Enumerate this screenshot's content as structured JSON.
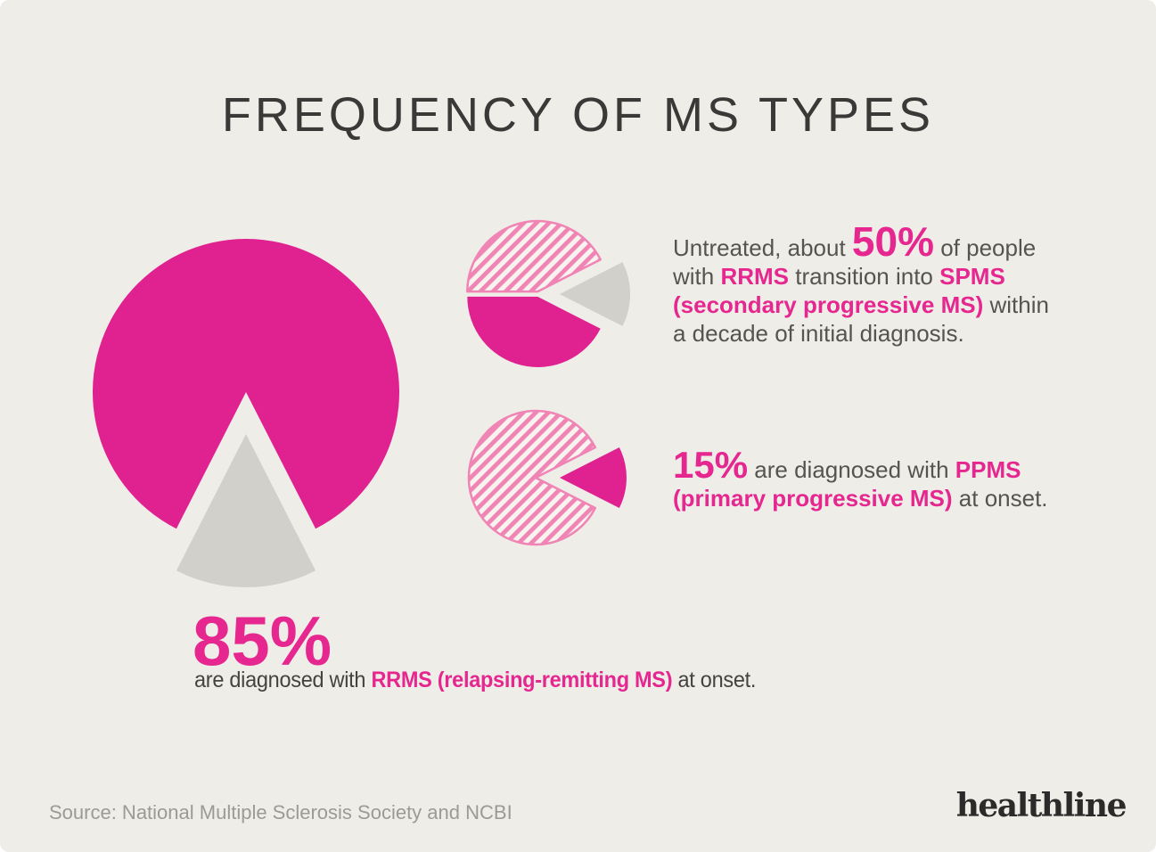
{
  "title": "FREQUENCY OF MS TYPES",
  "colors": {
    "background": "#efede8",
    "pink": "#e02190",
    "text_pink": "#e5278f",
    "hatch_pink": "#f084b4",
    "hatch_bg": "#f7f4ef",
    "gray": "#d2d0cb",
    "title_text": "#3a3938",
    "body_text": "#56544f",
    "caption_text": "#454340",
    "source_text": "#9c9a94",
    "logo_text": "#2c2b29"
  },
  "chart_data": [
    {
      "type": "pie",
      "name": "rrms-at-onset-pie",
      "slices": [
        {
          "label": "RRMS (relapsing-remitting MS) at onset",
          "value": 85,
          "style": "solid-pink"
        },
        {
          "label": "Other MS types",
          "value": 15,
          "style": "gray",
          "exploded": true
        }
      ]
    },
    {
      "type": "pie",
      "name": "spms-transition-pie",
      "slices": [
        {
          "label": "RRMS transitioning into SPMS (about 50% of RRMS, untreated)",
          "value": 42.5,
          "style": "hatched-pink"
        },
        {
          "label": "RRMS not transitioning",
          "value": 42.5,
          "style": "solid-pink"
        },
        {
          "label": "Non-RRMS",
          "value": 15,
          "style": "gray",
          "exploded": true
        }
      ]
    },
    {
      "type": "pie",
      "name": "ppms-at-onset-pie",
      "slices": [
        {
          "label": "Other MS types",
          "value": 85,
          "style": "hatched-pink"
        },
        {
          "label": "PPMS (primary progressive MS) at onset",
          "value": 15,
          "style": "solid-pink",
          "exploded": true
        }
      ]
    }
  ],
  "callouts": {
    "spms": {
      "lines": [
        [
          {
            "t": "Untreated, about ",
            "s": "text"
          },
          {
            "t": "50%",
            "s": "stat"
          },
          {
            "t": " of people",
            "s": "text"
          }
        ],
        [
          {
            "t": "with ",
            "s": "text"
          },
          {
            "t": "RRMS",
            "s": "em"
          },
          {
            "t": " transition into ",
            "s": "text"
          },
          {
            "t": "SPMS",
            "s": "em"
          }
        ],
        [
          {
            "t": "(secondary progressive MS)",
            "s": "em"
          },
          {
            "t": " within",
            "s": "text"
          }
        ],
        [
          {
            "t": "a decade of initial diagnosis.",
            "s": "text"
          }
        ]
      ]
    },
    "ppms": {
      "lines": [
        [
          {
            "t": "15%",
            "s": "stat"
          },
          {
            "t": " are diagnosed with ",
            "s": "text"
          },
          {
            "t": "PPMS",
            "s": "em"
          }
        ],
        [
          {
            "t": "(primary progressive MS)",
            "s": "em"
          },
          {
            "t": " at onset.",
            "s": "text"
          }
        ]
      ]
    },
    "rrms": {
      "stat": "85%",
      "lines": [
        [
          {
            "t": "are diagnosed with ",
            "s": "text"
          },
          {
            "t": "RRMS (relapsing-remitting MS)",
            "s": "em"
          },
          {
            "t": " at onset.",
            "s": "text"
          }
        ]
      ]
    }
  },
  "footer": {
    "source": "Source: National Multiple Sclerosis Society and NCBI",
    "logo": "healthline"
  }
}
